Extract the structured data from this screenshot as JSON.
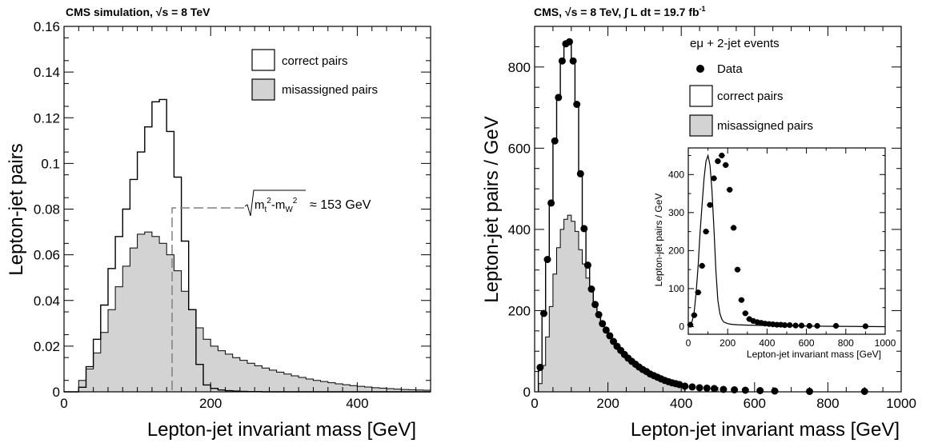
{
  "figure": {
    "left_title": "CMS simulation,  √s = 8 TeV",
    "right_title": "CMS,  √s = 8 TeV,  ∫ L dt = 19.7 fb",
    "right_title_sup": "-1",
    "annotation": "≈ 153 GeV",
    "annotation_formula": "√(m_t² − m_W²)",
    "inset_xlabel": "Lepton-jet invariant mass [GeV]",
    "inset_ylabel": "Lepton-jet pairs / GeV",
    "right_legend_header": "eμ + 2-jet events",
    "colors": {
      "fill": "#d3d3d3",
      "line": "#000000",
      "dash": "#808080"
    }
  },
  "chart_data": [
    {
      "type": "histogram",
      "title": "CMS simulation,  √s = 8 TeV",
      "xlabel": "Lepton-jet invariant mass [GeV]",
      "ylabel": "Lepton-jet pairs",
      "xlim": [
        0,
        500
      ],
      "ylim": [
        0,
        0.16
      ],
      "xticks": [
        "0",
        "200",
        "400"
      ],
      "yticks": [
        "0",
        "0.02",
        "0.04",
        "0.06",
        "0.08",
        "0.1",
        "0.12",
        "0.14",
        "0.16"
      ],
      "bin_width": 10,
      "bin_start": 0,
      "legend_position": "top-right",
      "series": [
        {
          "name": "correct pairs",
          "style": "open-line",
          "values": [
            0,
            0,
            0.002,
            0.011,
            0.023,
            0.038,
            0.054,
            0.068,
            0.08,
            0.093,
            0.105,
            0.116,
            0.127,
            0.128,
            0.114,
            0.094,
            0.066,
            0.036,
            0.012,
            0.003,
            0.0015,
            0.0008,
            0.0005,
            0.0003,
            0.0002,
            0.0001,
            0.0001,
            0,
            0,
            0,
            0,
            0,
            0,
            0,
            0,
            0,
            0,
            0,
            0,
            0,
            0,
            0,
            0,
            0,
            0,
            0,
            0,
            0,
            0,
            0
          ]
        },
        {
          "name": "misassigned pairs",
          "style": "filled",
          "values": [
            0,
            0,
            0.005,
            0.01,
            0.017,
            0.026,
            0.036,
            0.046,
            0.055,
            0.063,
            0.069,
            0.07,
            0.068,
            0.065,
            0.06,
            0.053,
            0.044,
            0.036,
            0.028,
            0.023,
            0.02,
            0.018,
            0.0165,
            0.015,
            0.0138,
            0.0125,
            0.0114,
            0.0104,
            0.0095,
            0.0086,
            0.0078,
            0.007,
            0.0063,
            0.0056,
            0.005,
            0.0045,
            0.004,
            0.0035,
            0.0031,
            0.0027,
            0.0024,
            0.0021,
            0.0018,
            0.0016,
            0.0014,
            0.0012,
            0.001,
            0.0009,
            0.0008,
            0.0007
          ]
        }
      ],
      "marker": {
        "label": "≈ 153 GeV",
        "x": 153,
        "y": 0.08
      }
    },
    {
      "type": "histogram",
      "title": "CMS,  √s = 8 TeV,  ∫ L dt = 19.7 fb-1",
      "xlabel": "Lepton-jet invariant mass [GeV]",
      "ylabel": "Lepton-jet pairs / GeV",
      "xlim": [
        0,
        1000
      ],
      "ylim": [
        0,
        900
      ],
      "xticks": [
        "0",
        "200",
        "400",
        "600",
        "800",
        "1000"
      ],
      "yticks": [
        "0",
        "200",
        "400",
        "600",
        "800"
      ],
      "bin_width": 10,
      "bin_start": 10,
      "legend_position": "top-right",
      "legend_header": "eμ + 2-jet events",
      "series": [
        {
          "name": "correct pairs",
          "style": "open-line",
          "values": [
            60,
            190,
            325,
            465,
            615,
            725,
            815,
            855,
            860,
            815,
            705,
            535,
            400,
            310,
            250,
            210,
            185,
            165,
            148,
            135,
            122,
            110,
            100,
            91,
            82,
            74,
            67,
            60,
            54,
            49,
            44,
            39,
            35,
            31,
            28,
            25,
            22,
            20,
            18,
            16
          ]
        },
        {
          "name": "misassigned pairs",
          "style": "filled",
          "values": [
            20,
            65,
            135,
            210,
            290,
            355,
            400,
            425,
            435,
            420,
            395,
            350,
            315,
            280,
            250,
            210,
            185,
            165,
            148,
            135,
            122,
            110,
            100,
            91,
            82,
            74,
            67,
            60,
            54,
            49,
            44,
            39,
            35,
            31,
            28,
            25,
            22,
            20,
            18,
            16
          ]
        },
        {
          "name": "Data",
          "style": "points",
          "x": [
            15,
            25,
            35,
            45,
            55,
            65,
            75,
            85,
            95,
            105,
            115,
            125,
            135,
            145,
            155,
            165,
            175,
            185,
            195,
            205,
            215,
            225,
            235,
            245,
            255,
            265,
            275,
            285,
            295,
            305,
            315,
            325,
            335,
            345,
            355,
            365,
            375,
            385,
            395,
            410,
            430,
            450,
            470,
            490,
            515,
            545,
            575,
            615,
            655,
            750,
            900
          ],
          "y": [
            60,
            193,
            326,
            465,
            618,
            725,
            815,
            857,
            862,
            815,
            708,
            537,
            402,
            312,
            253,
            215,
            190,
            168,
            152,
            138,
            124,
            112,
            102,
            92,
            83,
            75,
            68,
            61,
            55,
            50,
            44,
            40,
            36,
            32,
            28,
            25,
            22,
            20,
            18,
            14,
            12,
            10,
            9,
            8,
            6,
            5,
            4,
            3,
            2,
            1,
            1
          ]
        }
      ],
      "inset": {
        "xlabel": "Lepton-jet invariant mass [GeV]",
        "ylabel": "Lepton-jet pairs / GeV",
        "xlim": [
          0,
          1000
        ],
        "ylim": [
          -20,
          470
        ],
        "xticks": [
          "0",
          "200",
          "400",
          "600",
          "800",
          "1000"
        ],
        "yticks": [
          "0",
          "100",
          "200",
          "300",
          "400"
        ],
        "x": [
          10,
          30,
          50,
          70,
          90,
          110,
          130,
          150,
          170,
          190,
          210,
          230,
          250,
          270,
          290,
          310,
          330,
          350,
          370,
          390,
          410,
          430,
          450,
          470,
          490,
          515,
          545,
          575,
          615,
          655,
          750,
          900
        ],
        "y": [
          5,
          30,
          90,
          160,
          250,
          320,
          390,
          435,
          450,
          425,
          360,
          260,
          150,
          70,
          35,
          20,
          15,
          12,
          10,
          8,
          7,
          6,
          5,
          5,
          4,
          4,
          3,
          3,
          2,
          2,
          2,
          1
        ],
        "curve_x": [
          0,
          10,
          20,
          30,
          40,
          50,
          60,
          70,
          80,
          90,
          100,
          110,
          120,
          130,
          140,
          150,
          160,
          170,
          180,
          200,
          220,
          250,
          300,
          400,
          500,
          700,
          1000
        ],
        "curve_y": [
          0,
          5,
          15,
          40,
          90,
          160,
          250,
          320,
          390,
          435,
          450,
          425,
          360,
          260,
          150,
          70,
          35,
          20,
          12,
          8,
          6,
          5,
          4,
          3,
          2,
          1,
          0
        ]
      }
    }
  ]
}
